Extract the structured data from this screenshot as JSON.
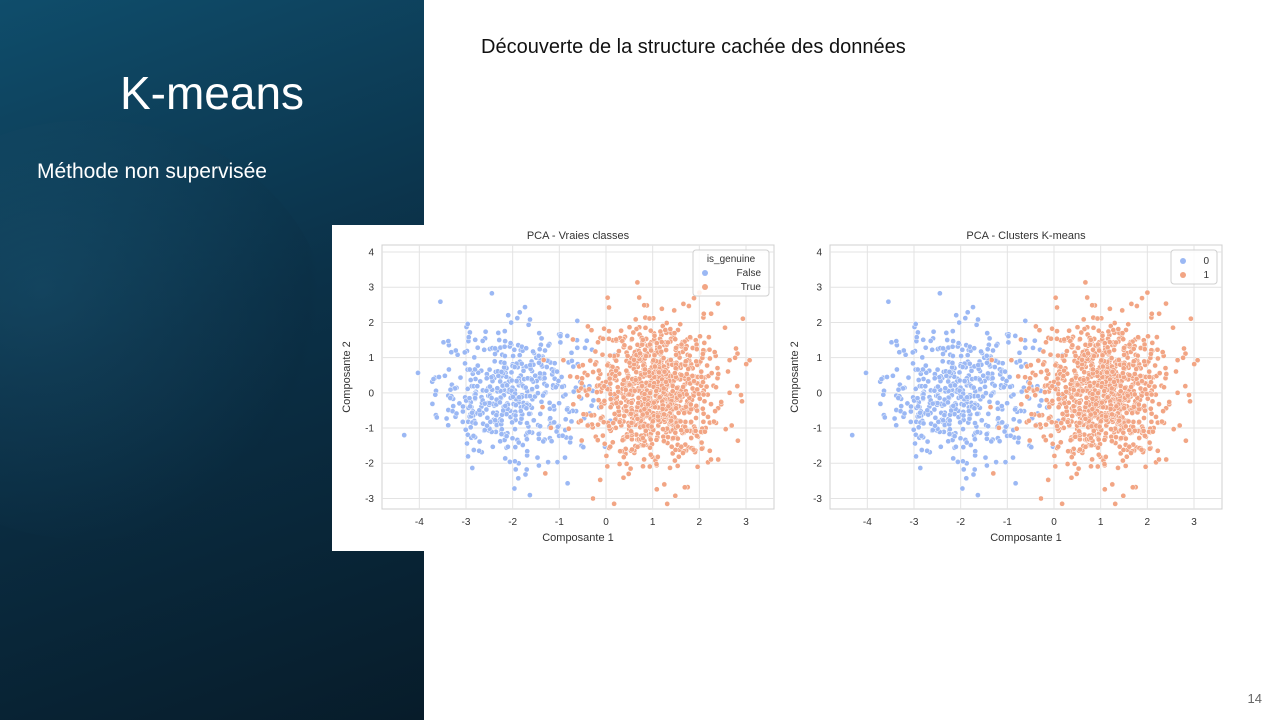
{
  "slide": {
    "title": "K-means",
    "subtitle": "Méthode non supervisée",
    "heading": "Découverte de la structure cachée des données",
    "page_number": "14"
  },
  "colors": {
    "panel_dark": "#0b3148",
    "class_blue": "#9bb8f4",
    "class_orange": "#f2a584"
  },
  "chart_data": [
    {
      "type": "scatter",
      "title": "PCA - Vraies classes",
      "xlabel": "Composante 1",
      "ylabel": "Composante 2",
      "xlim": [
        -4.8,
        3.6
      ],
      "ylim": [
        -3.3,
        4.2
      ],
      "xticks": [
        "-4",
        "-3",
        "-2",
        "-1",
        "0",
        "1",
        "2",
        "3"
      ],
      "yticks": [
        "-3",
        "-2",
        "-1",
        "0",
        "1",
        "2",
        "3",
        "4"
      ],
      "grid": true,
      "legend": {
        "title": "is_genuine",
        "placement": "top-right"
      },
      "series": [
        {
          "name": "False",
          "color": "#9bb8f4",
          "center": [
            -2.0,
            0.0
          ],
          "spread": [
            0.85,
            1.0
          ],
          "count": 500
        },
        {
          "name": "True",
          "color": "#f2a584",
          "center": [
            1.0,
            0.0
          ],
          "spread": [
            0.75,
            1.05
          ],
          "count": 1000
        }
      ]
    },
    {
      "type": "scatter",
      "title": "PCA - Clusters K-means",
      "xlabel": "Composante 1",
      "ylabel": "Composante 2",
      "xlim": [
        -4.8,
        3.6
      ],
      "ylim": [
        -3.3,
        4.2
      ],
      "xticks": [
        "-4",
        "-3",
        "-2",
        "-1",
        "0",
        "1",
        "2",
        "3"
      ],
      "yticks": [
        "-3",
        "-2",
        "-1",
        "0",
        "1",
        "2",
        "3",
        "4"
      ],
      "grid": true,
      "legend": {
        "title": "",
        "placement": "top-right"
      },
      "series": [
        {
          "name": "0",
          "color": "#9bb8f4",
          "center": [
            -2.0,
            0.0
          ],
          "spread": [
            0.85,
            1.0
          ],
          "count": 500
        },
        {
          "name": "1",
          "color": "#f2a584",
          "center": [
            1.0,
            0.0
          ],
          "spread": [
            0.75,
            1.05
          ],
          "count": 1000
        }
      ]
    }
  ]
}
